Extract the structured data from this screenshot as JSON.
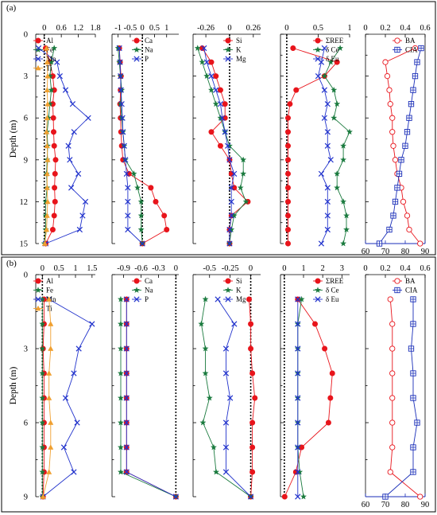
{
  "figure": {
    "y_axis_label": "Depth (m)"
  },
  "chart_data": [
    {
      "panel": "(a)",
      "type": "line",
      "ylabel": "Depth (m)",
      "ylim": [
        0,
        15
      ],
      "yticks": [
        0,
        3,
        6,
        9,
        12,
        15
      ],
      "tracks": [
        {
          "xlim": [
            -0.3,
            1.8
          ],
          "xticks": [
            0,
            0.6,
            1.2,
            1.8
          ],
          "xtick_labels": [
            "0",
            "0.6",
            "1.2",
            "1.8"
          ],
          "depths": [
            1,
            2,
            3,
            4,
            5,
            6,
            7,
            8,
            9,
            10,
            11,
            12,
            13,
            14,
            15
          ],
          "series": [
            {
              "name": "Al",
              "color": "#e8141b",
              "marker": "circle",
              "values": [
                0.05,
                0.2,
                0.3,
                0.35,
                0.3,
                0.32,
                0.33,
                0.35,
                0.4,
                0.38,
                0.36,
                0.38,
                0.35,
                0.3,
                0.05
              ]
            },
            {
              "name": "Fe",
              "color": "#1a7a3e",
              "marker": "star",
              "values": [
                0.35,
                0.25,
                0.2,
                0.25,
                0.2,
                0.15,
                0.1,
                0.12,
                0.1,
                0.08,
                0.1,
                0.05,
                0.05,
                0.05,
                0.0
              ]
            },
            {
              "name": "Mn",
              "color": "#2233cc",
              "marker": "x",
              "values": [
                -0.2,
                0.45,
                0.55,
                0.75,
                1.0,
                1.55,
                1.05,
                0.85,
                0.9,
                1.2,
                0.95,
                1.45,
                1.35,
                1.25,
                0.05
              ]
            },
            {
              "name": "Ti",
              "color": "#f0a030",
              "marker": "triangle",
              "values": [
                0.08,
                0.1,
                0.12,
                0.1,
                0.12,
                0.1,
                0.08,
                0.1,
                0.12,
                0.1,
                0.1,
                0.12,
                0.1,
                0.08,
                0.02
              ]
            }
          ]
        },
        {
          "xlim": [
            -1.25,
            1.5
          ],
          "xticks": [
            -1,
            -0.5,
            0,
            0.5,
            1
          ],
          "xtick_labels": [
            "-1",
            "-0.5",
            "0",
            "0.5",
            "1"
          ],
          "depths": [
            1,
            2,
            3,
            4,
            5,
            6,
            7,
            8,
            9,
            10,
            11,
            12,
            13,
            14,
            15
          ],
          "series": [
            {
              "name": "Ca",
              "color": "#e8141b",
              "marker": "circle",
              "values": [
                -0.95,
                -0.92,
                -0.88,
                -0.9,
                -0.92,
                -0.9,
                -0.88,
                -0.85,
                -0.8,
                -0.55,
                0.35,
                0.55,
                0.9,
                1.0,
                0.0
              ]
            },
            {
              "name": "Na",
              "color": "#1a7a3e",
              "marker": "star",
              "values": [
                -1.0,
                -0.95,
                -0.9,
                -0.85,
                -0.9,
                -0.85,
                -0.8,
                -0.75,
                -0.7,
                -0.35,
                -0.2,
                -0.05,
                -0.05,
                -0.05,
                0.0
              ]
            },
            {
              "name": "P",
              "color": "#2233cc",
              "marker": "x",
              "values": [
                -0.95,
                -0.92,
                -0.9,
                -0.88,
                -0.85,
                -0.82,
                -0.8,
                -0.75,
                -0.7,
                -0.65,
                -0.6,
                -0.6,
                -0.6,
                -0.6,
                0.0
              ]
            }
          ]
        },
        {
          "xlim": [
            -0.4,
            0.34
          ],
          "xticks": [
            -0.26,
            0,
            0.26
          ],
          "xtick_labels": [
            "-0.26",
            "0",
            "0.26"
          ],
          "depths": [
            1,
            2,
            3,
            4,
            5,
            6,
            7,
            8,
            9,
            10,
            11,
            12,
            13,
            14,
            15
          ],
          "series": [
            {
              "name": "Si",
              "color": "#e8141b",
              "marker": "circle",
              "values": [
                -0.3,
                -0.2,
                -0.15,
                -0.1,
                -0.05,
                -0.05,
                -0.2,
                -0.1,
                0.0,
                0.02,
                0.05,
                0.2,
                0.02,
                0.0,
                0.0
              ]
            },
            {
              "name": "K",
              "color": "#1a7a3e",
              "marker": "star",
              "values": [
                -0.35,
                -0.3,
                -0.25,
                -0.2,
                -0.15,
                -0.1,
                -0.05,
                0.0,
                0.15,
                0.15,
                0.12,
                0.18,
                0.05,
                0.02,
                0.0
              ]
            },
            {
              "name": "Mg",
              "color": "#2233cc",
              "marker": "x",
              "values": [
                -0.28,
                -0.25,
                -0.2,
                -0.15,
                -0.1,
                -0.08,
                -0.05,
                -0.02,
                0.0,
                0.05,
                0.02,
                0.02,
                0.02,
                0.0,
                0.0
              ]
            }
          ]
        },
        {
          "xlim": [
            -0.1,
            1.0
          ],
          "xticks": [
            0,
            0.5,
            1
          ],
          "xtick_labels": [
            "0",
            "0.5",
            "1"
          ],
          "depths": [
            1,
            2,
            3,
            4,
            5,
            6,
            7,
            8,
            9,
            10,
            11,
            12,
            13,
            14,
            15
          ],
          "series": [
            {
              "name": "ΣREE",
              "color": "#e8141b",
              "marker": "circle",
              "values": [
                0.1,
                0.8,
                0.6,
                0.15,
                0.05,
                0.02,
                0.02,
                0.02,
                0.02,
                0.02,
                0.02,
                0.02,
                0.02,
                0.02,
                0.02
              ]
            },
            {
              "name": "δ Ce",
              "color": "#1a7a3e",
              "marker": "star",
              "values": [
                0.85,
                0.7,
                0.6,
                0.75,
                0.8,
                0.75,
                1.0,
                0.9,
                0.9,
                0.8,
                0.8,
                0.9,
                0.95,
                0.95,
                0.9
              ]
            },
            {
              "name": "δ Eu",
              "color": "#2233cc",
              "marker": "x",
              "values": [
                0.6,
                0.55,
                0.5,
                0.6,
                0.65,
                0.6,
                0.65,
                0.65,
                0.7,
                0.55,
                0.65,
                0.65,
                0.65,
                0.65,
                0.55
              ]
            }
          ]
        },
        {
          "xlim": [
            0.0,
            0.6
          ],
          "xticks": [
            0,
            0.2,
            0.4,
            0.6
          ],
          "xtick_labels": [
            "0",
            "0.2",
            "0.4",
            "0.6"
          ],
          "bottom_axis": {
            "xlim": [
              60,
              90
            ],
            "xticks": [
              60,
              70,
              80,
              90
            ],
            "xtick_labels": [
              "60",
              "70",
              "80",
              "90"
            ],
            "color": "#1a2eb8"
          },
          "depths": [
            1,
            2,
            3,
            4,
            5,
            6,
            7,
            8,
            9,
            10,
            11,
            12,
            13,
            14,
            15
          ],
          "series": [
            {
              "name": "BA",
              "color": "#e8141b",
              "marker": "open-circle",
              "axis": "top",
              "values": [
                0.5,
                0.2,
                0.22,
                0.24,
                0.25,
                0.27,
                0.27,
                0.28,
                0.3,
                0.32,
                0.36,
                0.38,
                0.42,
                0.44,
                0.55
              ]
            },
            {
              "name": "CIA",
              "color": "#1a2eb8",
              "marker": "square-cross",
              "axis": "bottom",
              "values": [
                88,
                86,
                85,
                84,
                83,
                82,
                81,
                80,
                78,
                77,
                76,
                75,
                74,
                72,
                67
              ]
            }
          ]
        }
      ]
    },
    {
      "panel": "(b)",
      "type": "line",
      "ylabel": "Depth (m)",
      "ylim": [
        0,
        9
      ],
      "yticks": [
        0,
        3,
        6,
        9
      ],
      "tracks": [
        {
          "xlim": [
            -0.2,
            1.6
          ],
          "xticks": [
            0,
            0.5,
            1,
            1.5
          ],
          "xtick_labels": [
            "0",
            "0.5",
            "1",
            "1.5"
          ],
          "depths": [
            1,
            2,
            3,
            4,
            5,
            6,
            7,
            8,
            9
          ],
          "series": [
            {
              "name": "Al",
              "color": "#e8141b",
              "marker": "circle",
              "values": [
                0.05,
                0.05,
                0.02,
                0.05,
                0.05,
                0.05,
                0.05,
                0.05,
                0.02
              ]
            },
            {
              "name": "Fe",
              "color": "#1a7a3e",
              "marker": "star",
              "values": [
                0.0,
                0.0,
                0.0,
                0.0,
                0.0,
                0.0,
                0.0,
                0.0,
                0.0
              ]
            },
            {
              "name": "Mn",
              "color": "#2233cc",
              "marker": "x",
              "values": [
                0.2,
                1.5,
                1.1,
                0.95,
                0.7,
                1.05,
                0.65,
                0.95,
                0.02
              ]
            },
            {
              "name": "Ti",
              "color": "#f0a030",
              "marker": "triangle",
              "values": [
                0.2,
                0.25,
                0.25,
                0.2,
                0.2,
                0.25,
                0.25,
                0.2,
                0.02
              ]
            }
          ]
        },
        {
          "xlim": [
            -1.1,
            0.05
          ],
          "xticks": [
            -0.9,
            -0.6,
            -0.3,
            0
          ],
          "xtick_labels": [
            "-0.9",
            "-0.6",
            "-0.3",
            "0"
          ],
          "depths": [
            1,
            2,
            3,
            4,
            5,
            6,
            7,
            8,
            9
          ],
          "series": [
            {
              "name": "Ca",
              "color": "#e8141b",
              "marker": "circle",
              "values": [
                -0.85,
                -0.85,
                -0.85,
                -0.85,
                -0.85,
                -0.85,
                -0.85,
                -0.85,
                0.0
              ]
            },
            {
              "name": "Na",
              "color": "#1a7a3e",
              "marker": "star",
              "values": [
                -0.95,
                -0.95,
                -0.95,
                -0.95,
                -0.95,
                -0.95,
                -0.95,
                -0.95,
                0.0
              ]
            },
            {
              "name": "P",
              "color": "#2233cc",
              "marker": "x",
              "values": [
                -0.85,
                -0.85,
                -0.85,
                -0.85,
                -0.85,
                -0.85,
                -0.85,
                -0.85,
                0.0
              ]
            }
          ]
        },
        {
          "xlim": [
            -0.7,
            0.12
          ],
          "xticks": [
            -0.5,
            -0.25,
            0
          ],
          "xtick_labels": [
            "-0.5",
            "-0.25",
            "0"
          ],
          "depths": [
            1,
            2,
            3,
            4,
            5,
            6,
            7,
            8,
            9
          ],
          "series": [
            {
              "name": "Si",
              "color": "#e8141b",
              "marker": "circle",
              "values": [
                -0.02,
                0.0,
                0.0,
                0.02,
                0.05,
                0.02,
                0.02,
                0.02,
                0.0
              ]
            },
            {
              "name": "K",
              "color": "#1a7a3e",
              "marker": "star",
              "values": [
                -0.55,
                -0.6,
                -0.55,
                -0.55,
                -0.5,
                -0.58,
                -0.45,
                -0.42,
                0.0
              ]
            },
            {
              "name": "Mg",
              "color": "#2233cc",
              "marker": "x",
              "values": [
                -0.4,
                -0.2,
                -0.3,
                -0.3,
                -0.25,
                -0.3,
                -0.3,
                -0.3,
                0.0
              ]
            }
          ]
        },
        {
          "xlim": [
            -0.2,
            3.4
          ],
          "xticks": [
            0,
            1,
            2,
            3
          ],
          "xtick_labels": [
            "0",
            "1",
            "2",
            "3"
          ],
          "depths": [
            1,
            2,
            3,
            4,
            5,
            6,
            7,
            8,
            9
          ],
          "series": [
            {
              "name": "ΣREE",
              "color": "#e8141b",
              "marker": "circle",
              "values": [
                0.7,
                1.6,
                2.1,
                2.5,
                2.4,
                2.3,
                0.9,
                0.6,
                0.02
              ]
            },
            {
              "name": "δ Ce",
              "color": "#1a7a3e",
              "marker": "star",
              "values": [
                0.9,
                0.7,
                0.7,
                0.7,
                0.7,
                0.7,
                0.7,
                0.8,
                1.0
              ]
            },
            {
              "name": "δ Eu",
              "color": "#2233cc",
              "marker": "x",
              "values": [
                0.7,
                0.7,
                0.7,
                0.7,
                0.7,
                0.7,
                0.7,
                0.7,
                0.7
              ]
            }
          ]
        },
        {
          "xlim": [
            0.0,
            0.6
          ],
          "xticks": [
            0,
            0.2,
            0.4,
            0.6
          ],
          "xtick_labels": [
            "0",
            "0.2",
            "0.4",
            "0.6"
          ],
          "bottom_axis": {
            "xlim": [
              60,
              90
            ],
            "xticks": [
              60,
              70,
              80,
              90
            ],
            "xtick_labels": [
              "60",
              "70",
              "80",
              "90"
            ],
            "color": "#1a2eb8"
          },
          "depths": [
            1,
            2,
            3,
            4,
            5,
            6,
            7,
            8,
            9
          ],
          "series": [
            {
              "name": "BA",
              "color": "#e8141b",
              "marker": "open-circle",
              "axis": "top",
              "values": [
                0.25,
                0.27,
                0.27,
                0.27,
                0.27,
                0.27,
                0.27,
                0.25,
                0.55
              ]
            },
            {
              "name": "CIA",
              "color": "#1a2eb8",
              "marker": "square-cross",
              "axis": "bottom",
              "values": [
                84,
                84,
                83,
                84,
                84,
                86,
                84,
                84,
                70
              ]
            }
          ]
        }
      ]
    }
  ]
}
